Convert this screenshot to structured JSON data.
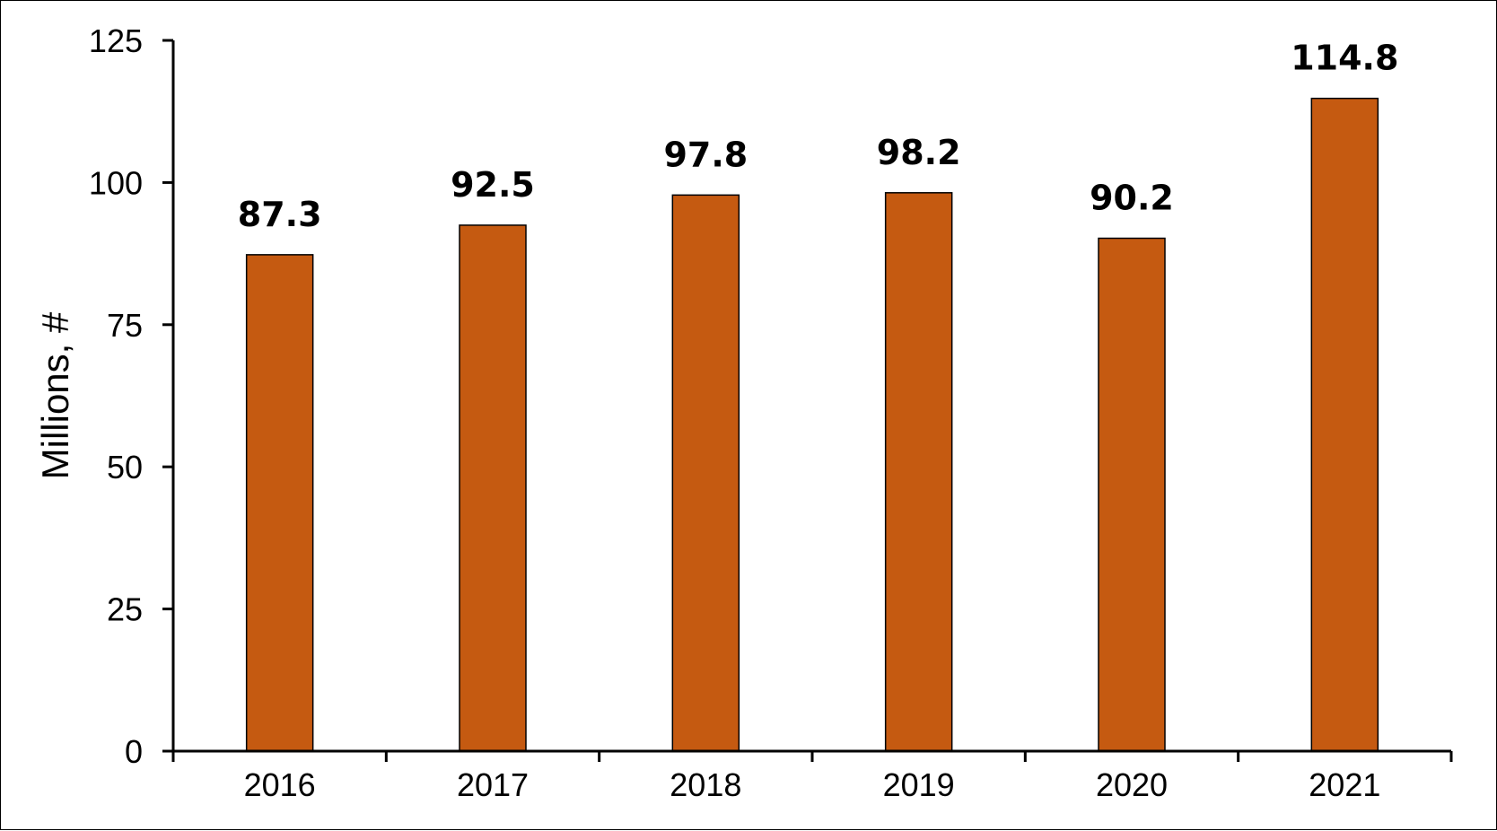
{
  "chart_data": {
    "type": "bar",
    "categories": [
      "2016",
      "2017",
      "2018",
      "2019",
      "2020",
      "2021"
    ],
    "values": [
      87.3,
      92.5,
      97.8,
      98.2,
      90.2,
      114.8
    ],
    "data_labels": [
      "87.3",
      "92.5",
      "97.8",
      "98.2",
      "90.2",
      "114.8"
    ],
    "title": "",
    "xlabel": "",
    "ylabel": "Millions, #",
    "ylim": [
      0,
      125
    ],
    "yticks": [
      0,
      25,
      50,
      75,
      100,
      125
    ],
    "ytick_labels": [
      "0",
      "25",
      "50",
      "75",
      "100",
      "125"
    ],
    "grid": false,
    "legend": "none",
    "bar_color": "#C55A11",
    "bar_edge_color": "#000000"
  }
}
